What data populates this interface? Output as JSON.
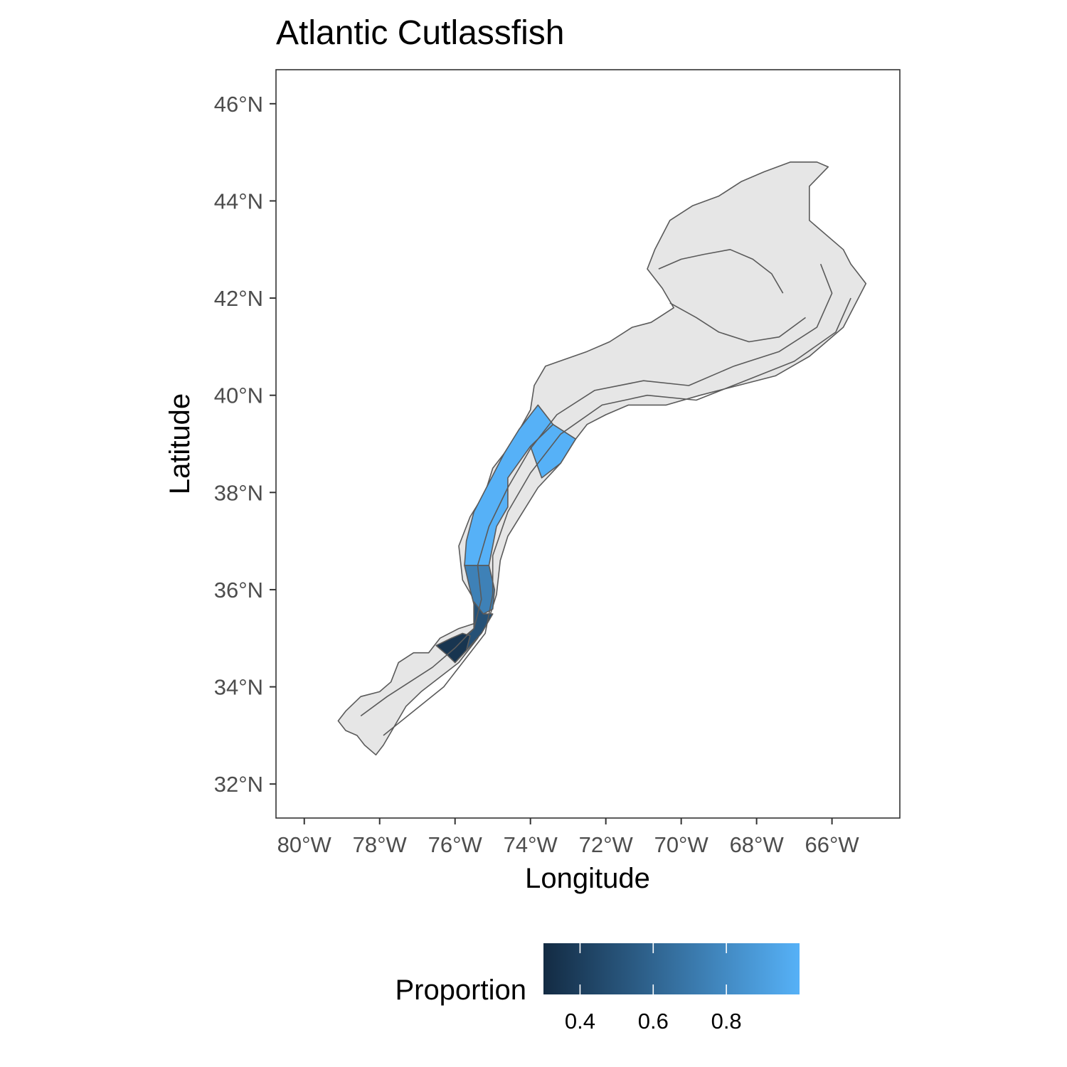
{
  "chart_data": {
    "type": "map",
    "title": "Atlantic Cutlassfish",
    "xlabel": "Longitude",
    "ylabel": "Latitude",
    "xlim": [
      -80.75,
      -64.2
    ],
    "ylim": [
      31.3,
      46.7
    ],
    "x_ticks": [
      {
        "value": -80,
        "label": "80°W"
      },
      {
        "value": -78,
        "label": "78°W"
      },
      {
        "value": -76,
        "label": "76°W"
      },
      {
        "value": -74,
        "label": "74°W"
      },
      {
        "value": -72,
        "label": "72°W"
      },
      {
        "value": -70,
        "label": "70°W"
      },
      {
        "value": -68,
        "label": "68°W"
      },
      {
        "value": -66,
        "label": "66°W"
      }
    ],
    "y_ticks": [
      {
        "value": 32,
        "label": "32°N"
      },
      {
        "value": 34,
        "label": "34°N"
      },
      {
        "value": 36,
        "label": "36°N"
      },
      {
        "value": 38,
        "label": "38°N"
      },
      {
        "value": 40,
        "label": "40°N"
      },
      {
        "value": 42,
        "label": "42°N"
      },
      {
        "value": 44,
        "label": "44°N"
      },
      {
        "value": 46,
        "label": "46°N"
      }
    ],
    "grid": false,
    "legend": {
      "title": "Proportion",
      "position": "bottom",
      "range": [
        0.3,
        1.0
      ],
      "low_color": "#132B43",
      "high_color": "#56B1F7",
      "breaks": [
        {
          "value": 0.4,
          "label": "0.4"
        },
        {
          "value": 0.6,
          "label": "0.6"
        },
        {
          "value": 0.8,
          "label": "0.8"
        }
      ]
    },
    "no_data_color": "#e6e6e6",
    "region_outline": [
      [
        -79.1,
        33.3
      ],
      [
        -78.9,
        33.5
      ],
      [
        -78.5,
        33.8
      ],
      [
        -78,
        33.9
      ],
      [
        -77.7,
        34.1
      ],
      [
        -77.5,
        34.5
      ],
      [
        -77.1,
        34.7
      ],
      [
        -76.7,
        34.7
      ],
      [
        -76.4,
        35.0
      ],
      [
        -75.9,
        35.2
      ],
      [
        -75.5,
        35.3
      ],
      [
        -75.5,
        35.8
      ],
      [
        -75.8,
        36.2
      ],
      [
        -75.9,
        36.9
      ],
      [
        -75.6,
        37.5
      ],
      [
        -75.2,
        38.0
      ],
      [
        -75.0,
        38.5
      ],
      [
        -74.5,
        39.0
      ],
      [
        -74.0,
        39.7
      ],
      [
        -73.9,
        40.2
      ],
      [
        -73.6,
        40.6
      ],
      [
        -72.5,
        40.9
      ],
      [
        -71.9,
        41.1
      ],
      [
        -71.3,
        41.4
      ],
      [
        -70.8,
        41.5
      ],
      [
        -70.6,
        41.6
      ],
      [
        -70.2,
        41.8
      ],
      [
        -70.5,
        42.2
      ],
      [
        -70.9,
        42.6
      ],
      [
        -70.7,
        43.0
      ],
      [
        -70.3,
        43.6
      ],
      [
        -69.7,
        43.9
      ],
      [
        -69.0,
        44.1
      ],
      [
        -68.4,
        44.4
      ],
      [
        -67.8,
        44.6
      ],
      [
        -67.1,
        44.8
      ],
      [
        -66.4,
        44.8
      ],
      [
        -66.1,
        44.7
      ],
      [
        -66.6,
        44.3
      ],
      [
        -66.6,
        43.6
      ],
      [
        -65.7,
        43.0
      ],
      [
        -65.5,
        42.7
      ],
      [
        -65.1,
        42.3
      ],
      [
        -65.3,
        42.0
      ],
      [
        -65.7,
        41.4
      ],
      [
        -66.6,
        40.8
      ],
      [
        -67.5,
        40.4
      ],
      [
        -68.5,
        40.2
      ],
      [
        -69.5,
        40.0
      ],
      [
        -70.4,
        39.8
      ],
      [
        -71.4,
        39.8
      ],
      [
        -72.0,
        39.6
      ],
      [
        -72.5,
        39.4
      ],
      [
        -72.8,
        39.1
      ],
      [
        -73.2,
        38.6
      ],
      [
        -73.8,
        38.1
      ],
      [
        -74.2,
        37.6
      ],
      [
        -74.6,
        37.1
      ],
      [
        -74.8,
        36.6
      ],
      [
        -74.9,
        35.9
      ],
      [
        -75.1,
        35.4
      ],
      [
        -75.4,
        35.0
      ],
      [
        -75.9,
        34.5
      ],
      [
        -76.4,
        34.2
      ],
      [
        -76.9,
        33.9
      ],
      [
        -77.3,
        33.6
      ],
      [
        -77.6,
        33.2
      ],
      [
        -77.9,
        32.8
      ],
      [
        -78.1,
        32.6
      ],
      [
        -78.4,
        32.8
      ],
      [
        -78.6,
        33.0
      ],
      [
        -78.9,
        33.1
      ]
    ],
    "contours": [
      [
        [
          -78.5,
          33.4
        ],
        [
          -77.8,
          33.8
        ],
        [
          -77.2,
          34.1
        ],
        [
          -76.6,
          34.4
        ],
        [
          -76.0,
          34.8
        ],
        [
          -75.5,
          35.2
        ],
        [
          -75.3,
          35.8
        ],
        [
          -75.4,
          36.5
        ],
        [
          -75.1,
          37.3
        ],
        [
          -74.6,
          38.1
        ],
        [
          -74.0,
          38.9
        ],
        [
          -73.3,
          39.6
        ],
        [
          -72.3,
          40.1
        ],
        [
          -71.0,
          40.3
        ],
        [
          -69.8,
          40.2
        ],
        [
          -68.6,
          40.6
        ],
        [
          -67.4,
          40.9
        ],
        [
          -66.4,
          41.4
        ],
        [
          -66.0,
          42.1
        ],
        [
          -66.3,
          42.7
        ]
      ],
      [
        [
          -77.9,
          33.0
        ],
        [
          -77.1,
          33.5
        ],
        [
          -76.3,
          34.0
        ],
        [
          -75.7,
          34.6
        ],
        [
          -75.2,
          35.1
        ],
        [
          -75.0,
          35.9
        ],
        [
          -75.0,
          36.7
        ],
        [
          -74.6,
          37.6
        ],
        [
          -74.0,
          38.4
        ],
        [
          -73.2,
          39.2
        ],
        [
          -72.1,
          39.8
        ],
        [
          -70.9,
          40.0
        ],
        [
          -69.6,
          39.9
        ],
        [
          -68.3,
          40.3
        ],
        [
          -67.0,
          40.7
        ],
        [
          -65.9,
          41.3
        ],
        [
          -65.5,
          42.0
        ]
      ],
      [
        [
          -70.6,
          42.6
        ],
        [
          -70.0,
          42.8
        ],
        [
          -69.4,
          42.9
        ],
        [
          -68.7,
          43.0
        ],
        [
          -68.1,
          42.8
        ],
        [
          -67.6,
          42.5
        ],
        [
          -67.3,
          42.1
        ]
      ],
      [
        [
          -70.3,
          41.9
        ],
        [
          -69.6,
          41.6
        ],
        [
          -69.0,
          41.3
        ],
        [
          -68.2,
          41.1
        ],
        [
          -67.4,
          41.2
        ],
        [
          -66.7,
          41.6
        ]
      ]
    ],
    "strata": [
      {
        "proportion": 1.0,
        "coords": [
          [
            -73.8,
            39.8
          ],
          [
            -73.4,
            39.4
          ],
          [
            -74.0,
            38.95
          ],
          [
            -74.6,
            38.3
          ],
          [
            -74.6,
            37.7
          ],
          [
            -74.9,
            37.3
          ],
          [
            -75.1,
            36.5
          ],
          [
            -75.75,
            36.5
          ],
          [
            -75.7,
            37.0
          ],
          [
            -75.5,
            37.6
          ],
          [
            -75.1,
            38.2
          ],
          [
            -74.7,
            38.8
          ],
          [
            -74.3,
            39.3
          ]
        ]
      },
      {
        "proportion": 1.0,
        "coords": [
          [
            -73.4,
            39.4
          ],
          [
            -72.8,
            39.1
          ],
          [
            -73.2,
            38.6
          ],
          [
            -73.7,
            38.3
          ],
          [
            -74.0,
            38.95
          ]
        ]
      },
      {
        "proportion": 0.75,
        "coords": [
          [
            -75.75,
            36.5
          ],
          [
            -75.1,
            36.5
          ],
          [
            -74.95,
            36.0
          ],
          [
            -75.0,
            35.6
          ],
          [
            -75.25,
            35.5
          ],
          [
            -75.5,
            35.7
          ],
          [
            -75.6,
            36.0
          ]
        ]
      },
      {
        "proportion": 0.5,
        "coords": [
          [
            -75.5,
            35.75
          ],
          [
            -75.25,
            35.5
          ],
          [
            -75.0,
            35.5
          ],
          [
            -75.3,
            35.1
          ],
          [
            -75.7,
            34.75
          ],
          [
            -76.0,
            34.5
          ],
          [
            -76.1,
            34.8
          ],
          [
            -75.8,
            35.0
          ],
          [
            -75.5,
            35.2
          ]
        ]
      },
      {
        "proportion": 0.35,
        "coords": [
          [
            -76.5,
            34.85
          ],
          [
            -76.1,
            35.0
          ],
          [
            -75.8,
            35.1
          ],
          [
            -75.6,
            35.05
          ],
          [
            -75.7,
            34.75
          ],
          [
            -76.0,
            34.5
          ],
          [
            -76.2,
            34.65
          ]
        ]
      }
    ]
  }
}
